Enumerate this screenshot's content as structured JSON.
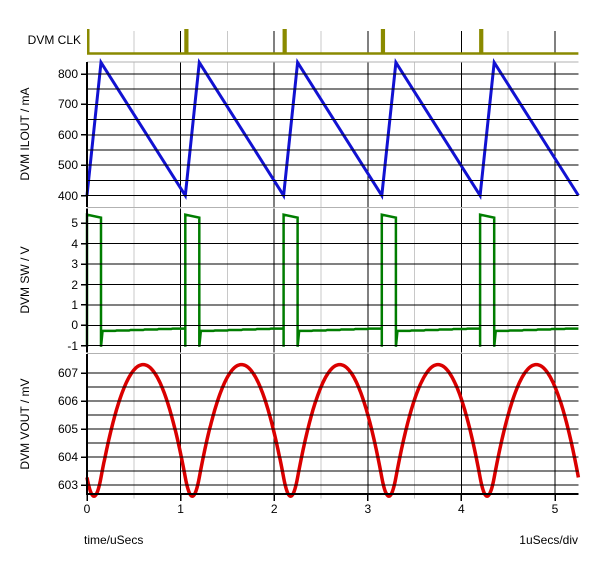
{
  "labels": {
    "x_axis": "time/uSecs",
    "x_scale": "1uSecs/div"
  },
  "chart_data": {
    "type": "line",
    "title": "",
    "x": {
      "label": "time/uSecs",
      "per_div": "1uSecs/div",
      "min": 0,
      "max": 5.25,
      "ticks": [
        0,
        1,
        2,
        3,
        4,
        5
      ],
      "minor_step": 0.5
    },
    "panels": [
      {
        "id": "clk",
        "name": "DVM CLK",
        "kind": "clock",
        "color": "#8a8a00",
        "pulse_times": [
          0,
          1.05,
          2.1,
          3.15,
          4.2
        ],
        "pulse_width_us": 0.045
      },
      {
        "id": "ilout",
        "name": "DVM ILOUT / mA",
        "kind": "sawtooth",
        "color": "#1212d2",
        "ticks": [
          400,
          500,
          600,
          700,
          800
        ],
        "minor_ticks": [
          450,
          550,
          650,
          750
        ],
        "period_us": 1.05,
        "rise_us": 0.15,
        "min": 400,
        "max": 838
      },
      {
        "id": "sw",
        "name": "DVM SW / V",
        "kind": "pulse",
        "color": "#007d00",
        "ticks": [
          -1,
          0,
          1,
          2,
          3,
          4,
          5
        ],
        "period_us": 1.05,
        "on_us": 0.15,
        "high_start": 5.42,
        "high_end": 5.28,
        "low_start": -0.3,
        "low_end": -0.16,
        "undershoot": -1.05
      },
      {
        "id": "vout",
        "name": "DVM VOUT / mV",
        "kind": "ripple",
        "color": "#da0000",
        "ticks": [
          603,
          604,
          605,
          606,
          607
        ],
        "minor_ticks": [
          603.5,
          604.5,
          605.5,
          606.5
        ],
        "period_us": 1.05,
        "min": 602.6,
        "max": 607.3,
        "min_at_us": 0.075,
        "max_at_us": 0.6
      }
    ],
    "grid": {
      "major_color": "#000000",
      "minor_color": "#c8c8c8",
      "border_color": "#b2b2b2",
      "grid_on": true
    }
  }
}
